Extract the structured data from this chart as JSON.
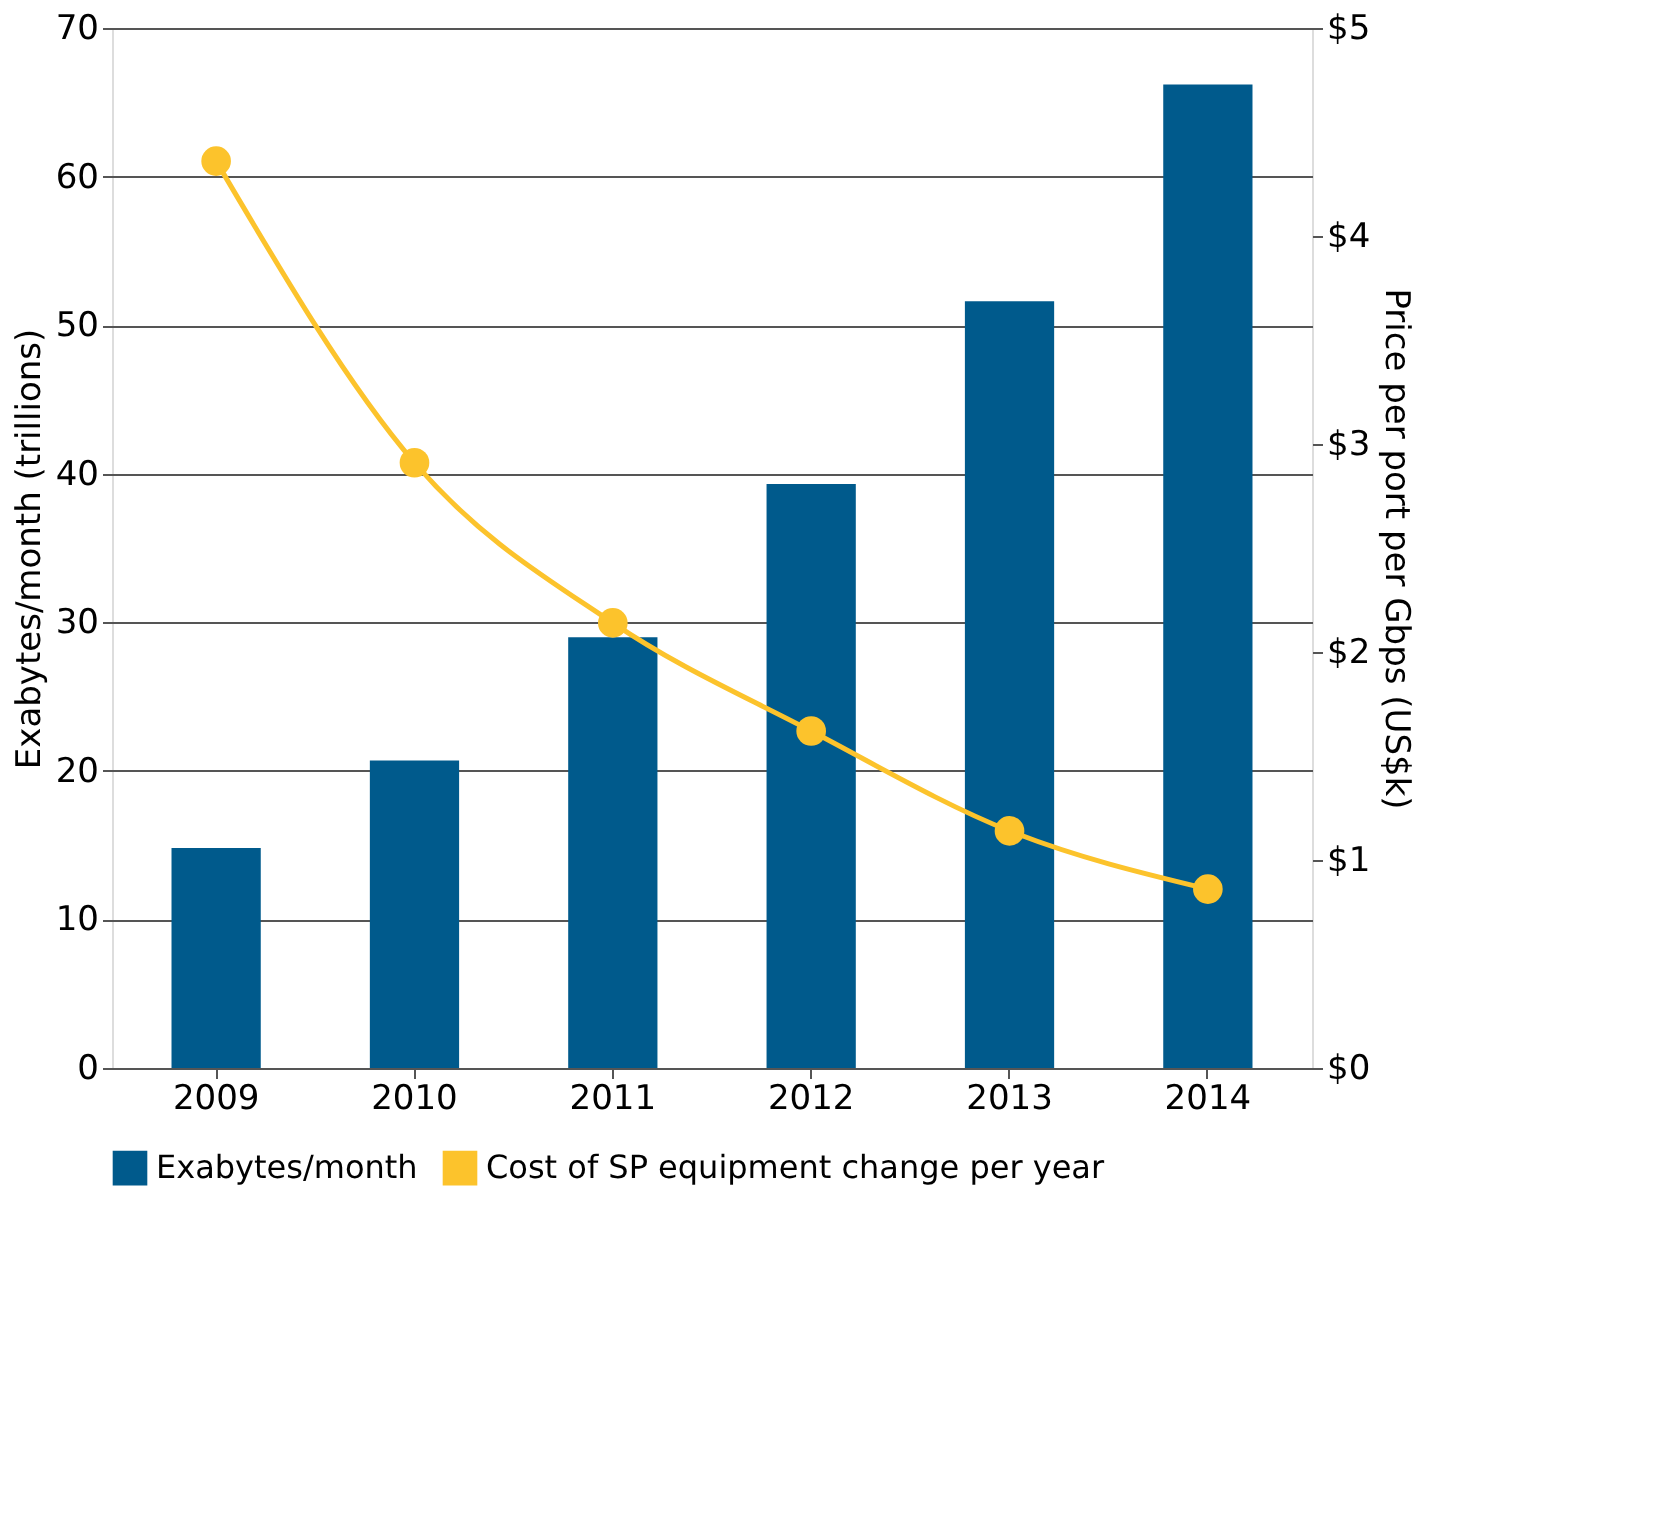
{
  "chart_data": {
    "type": "bar",
    "categories": [
      "2009",
      "2010",
      "2011",
      "2012",
      "2013",
      "2014"
    ],
    "ylabel": "Exabytes/month (trillions)",
    "y2label": "Price per port per Gbps (US$k)",
    "series": [
      {
        "name": "Exabytes/month",
        "color": "#005a8c",
        "values": [
          14.8,
          20.7,
          29.0,
          39.3,
          51.6,
          66.2
        ]
      },
      {
        "name": "Cost of SP equipment change per year",
        "type": "line",
        "axis": "y2",
        "color": "#fcc32c",
        "marker": "circle",
        "values": [
          4.36,
          2.91,
          2.14,
          1.62,
          1.14,
          0.86
        ]
      }
    ],
    "ylim": [
      0,
      70
    ],
    "yticks": [
      0,
      10,
      20,
      30,
      40,
      50,
      60,
      70
    ],
    "y2lim": [
      0,
      5
    ],
    "y2ticks": [
      {
        "value": 0,
        "label": "$0"
      },
      {
        "value": 1,
        "label": "$1"
      },
      {
        "value": 2,
        "label": "$2"
      },
      {
        "value": 3,
        "label": "$3"
      },
      {
        "value": 4,
        "label": "$4"
      },
      {
        "value": 5,
        "label": "$5"
      }
    ],
    "grid": "y",
    "legend": "bottom"
  }
}
